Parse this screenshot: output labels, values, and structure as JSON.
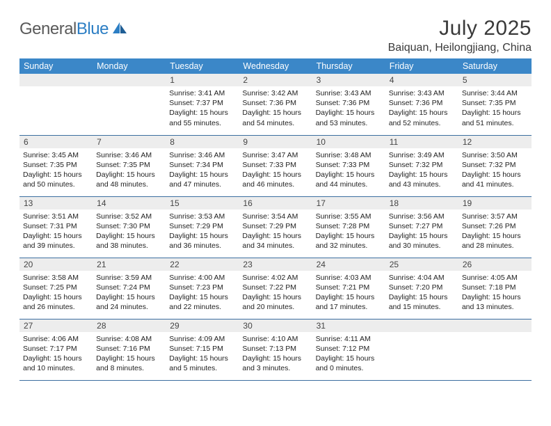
{
  "brand": {
    "part1": "General",
    "part2": "Blue"
  },
  "title": "July 2025",
  "location": "Baiquan, Heilongjiang, China",
  "colors": {
    "header_bg": "#3b87c8",
    "header_text": "#ffffff",
    "daynum_bg": "#ededed",
    "row_border": "#3b6ea0",
    "text": "#222222",
    "brand_gray": "#5a5a5a",
    "brand_blue": "#2c7ec4"
  },
  "weekdays": [
    "Sunday",
    "Monday",
    "Tuesday",
    "Wednesday",
    "Thursday",
    "Friday",
    "Saturday"
  ],
  "weeks": [
    [
      null,
      null,
      {
        "n": "1",
        "sr": "Sunrise: 3:41 AM",
        "ss": "Sunset: 7:37 PM",
        "dl": "Daylight: 15 hours and 55 minutes."
      },
      {
        "n": "2",
        "sr": "Sunrise: 3:42 AM",
        "ss": "Sunset: 7:36 PM",
        "dl": "Daylight: 15 hours and 54 minutes."
      },
      {
        "n": "3",
        "sr": "Sunrise: 3:43 AM",
        "ss": "Sunset: 7:36 PM",
        "dl": "Daylight: 15 hours and 53 minutes."
      },
      {
        "n": "4",
        "sr": "Sunrise: 3:43 AM",
        "ss": "Sunset: 7:36 PM",
        "dl": "Daylight: 15 hours and 52 minutes."
      },
      {
        "n": "5",
        "sr": "Sunrise: 3:44 AM",
        "ss": "Sunset: 7:35 PM",
        "dl": "Daylight: 15 hours and 51 minutes."
      }
    ],
    [
      {
        "n": "6",
        "sr": "Sunrise: 3:45 AM",
        "ss": "Sunset: 7:35 PM",
        "dl": "Daylight: 15 hours and 50 minutes."
      },
      {
        "n": "7",
        "sr": "Sunrise: 3:46 AM",
        "ss": "Sunset: 7:35 PM",
        "dl": "Daylight: 15 hours and 48 minutes."
      },
      {
        "n": "8",
        "sr": "Sunrise: 3:46 AM",
        "ss": "Sunset: 7:34 PM",
        "dl": "Daylight: 15 hours and 47 minutes."
      },
      {
        "n": "9",
        "sr": "Sunrise: 3:47 AM",
        "ss": "Sunset: 7:33 PM",
        "dl": "Daylight: 15 hours and 46 minutes."
      },
      {
        "n": "10",
        "sr": "Sunrise: 3:48 AM",
        "ss": "Sunset: 7:33 PM",
        "dl": "Daylight: 15 hours and 44 minutes."
      },
      {
        "n": "11",
        "sr": "Sunrise: 3:49 AM",
        "ss": "Sunset: 7:32 PM",
        "dl": "Daylight: 15 hours and 43 minutes."
      },
      {
        "n": "12",
        "sr": "Sunrise: 3:50 AM",
        "ss": "Sunset: 7:32 PM",
        "dl": "Daylight: 15 hours and 41 minutes."
      }
    ],
    [
      {
        "n": "13",
        "sr": "Sunrise: 3:51 AM",
        "ss": "Sunset: 7:31 PM",
        "dl": "Daylight: 15 hours and 39 minutes."
      },
      {
        "n": "14",
        "sr": "Sunrise: 3:52 AM",
        "ss": "Sunset: 7:30 PM",
        "dl": "Daylight: 15 hours and 38 minutes."
      },
      {
        "n": "15",
        "sr": "Sunrise: 3:53 AM",
        "ss": "Sunset: 7:29 PM",
        "dl": "Daylight: 15 hours and 36 minutes."
      },
      {
        "n": "16",
        "sr": "Sunrise: 3:54 AM",
        "ss": "Sunset: 7:29 PM",
        "dl": "Daylight: 15 hours and 34 minutes."
      },
      {
        "n": "17",
        "sr": "Sunrise: 3:55 AM",
        "ss": "Sunset: 7:28 PM",
        "dl": "Daylight: 15 hours and 32 minutes."
      },
      {
        "n": "18",
        "sr": "Sunrise: 3:56 AM",
        "ss": "Sunset: 7:27 PM",
        "dl": "Daylight: 15 hours and 30 minutes."
      },
      {
        "n": "19",
        "sr": "Sunrise: 3:57 AM",
        "ss": "Sunset: 7:26 PM",
        "dl": "Daylight: 15 hours and 28 minutes."
      }
    ],
    [
      {
        "n": "20",
        "sr": "Sunrise: 3:58 AM",
        "ss": "Sunset: 7:25 PM",
        "dl": "Daylight: 15 hours and 26 minutes."
      },
      {
        "n": "21",
        "sr": "Sunrise: 3:59 AM",
        "ss": "Sunset: 7:24 PM",
        "dl": "Daylight: 15 hours and 24 minutes."
      },
      {
        "n": "22",
        "sr": "Sunrise: 4:00 AM",
        "ss": "Sunset: 7:23 PM",
        "dl": "Daylight: 15 hours and 22 minutes."
      },
      {
        "n": "23",
        "sr": "Sunrise: 4:02 AM",
        "ss": "Sunset: 7:22 PM",
        "dl": "Daylight: 15 hours and 20 minutes."
      },
      {
        "n": "24",
        "sr": "Sunrise: 4:03 AM",
        "ss": "Sunset: 7:21 PM",
        "dl": "Daylight: 15 hours and 17 minutes."
      },
      {
        "n": "25",
        "sr": "Sunrise: 4:04 AM",
        "ss": "Sunset: 7:20 PM",
        "dl": "Daylight: 15 hours and 15 minutes."
      },
      {
        "n": "26",
        "sr": "Sunrise: 4:05 AM",
        "ss": "Sunset: 7:18 PM",
        "dl": "Daylight: 15 hours and 13 minutes."
      }
    ],
    [
      {
        "n": "27",
        "sr": "Sunrise: 4:06 AM",
        "ss": "Sunset: 7:17 PM",
        "dl": "Daylight: 15 hours and 10 minutes."
      },
      {
        "n": "28",
        "sr": "Sunrise: 4:08 AM",
        "ss": "Sunset: 7:16 PM",
        "dl": "Daylight: 15 hours and 8 minutes."
      },
      {
        "n": "29",
        "sr": "Sunrise: 4:09 AM",
        "ss": "Sunset: 7:15 PM",
        "dl": "Daylight: 15 hours and 5 minutes."
      },
      {
        "n": "30",
        "sr": "Sunrise: 4:10 AM",
        "ss": "Sunset: 7:13 PM",
        "dl": "Daylight: 15 hours and 3 minutes."
      },
      {
        "n": "31",
        "sr": "Sunrise: 4:11 AM",
        "ss": "Sunset: 7:12 PM",
        "dl": "Daylight: 15 hours and 0 minutes."
      },
      null,
      null
    ]
  ]
}
